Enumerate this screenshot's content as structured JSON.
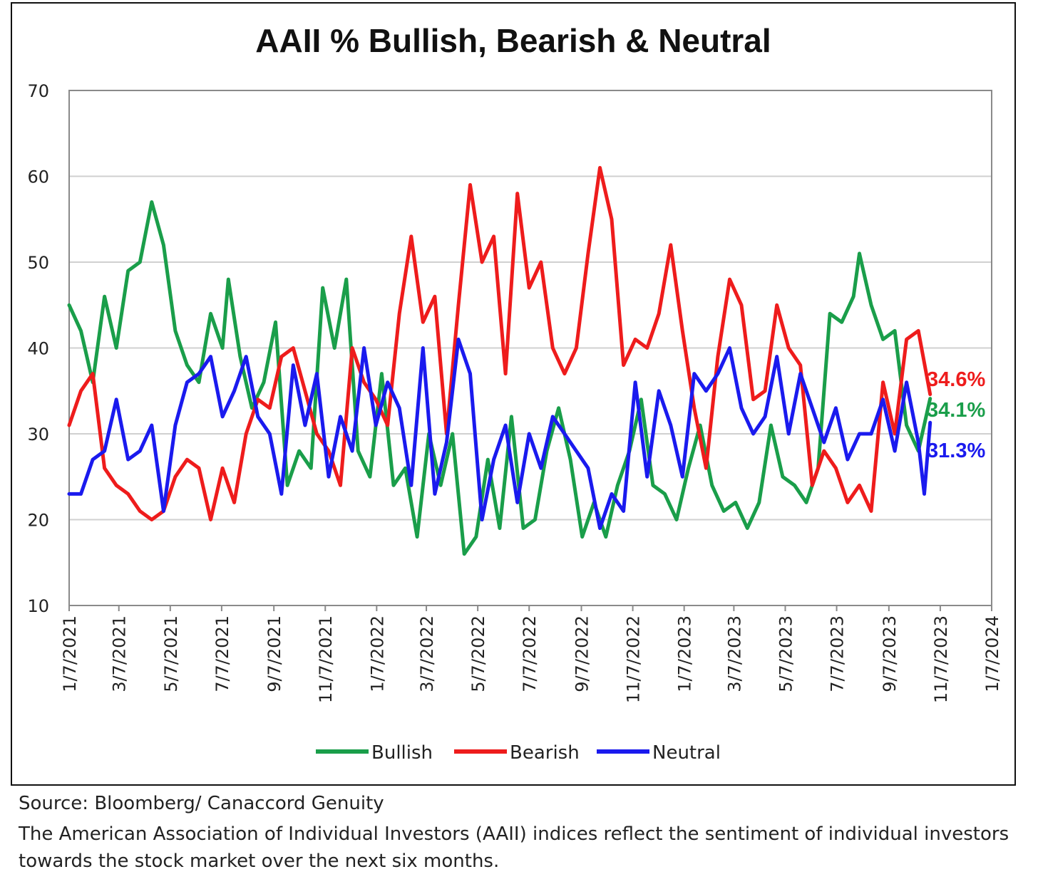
{
  "chart_data": {
    "type": "line",
    "title": "AAII % Bullish, Bearish & Neutral",
    "xlabel": "",
    "ylabel": "",
    "ylim": [
      10,
      70
    ],
    "yticks": [
      10,
      20,
      30,
      40,
      50,
      60,
      70
    ],
    "xlim": [
      "2021-01-07",
      "2024-01-07"
    ],
    "xticks": [
      "2021-01-07",
      "2021-03-07",
      "2021-05-07",
      "2021-07-07",
      "2021-09-07",
      "2021-11-07",
      "2022-01-07",
      "2022-03-07",
      "2022-05-07",
      "2022-07-07",
      "2022-09-07",
      "2022-11-07",
      "2023-01-07",
      "2023-03-07",
      "2023-05-07",
      "2023-07-07",
      "2023-09-07",
      "2023-11-07",
      "2024-01-07"
    ],
    "xtick_labels": [
      "1/7/2021",
      "3/7/2021",
      "5/7/2021",
      "7/7/2021",
      "9/7/2021",
      "11/7/2021",
      "1/7/2022",
      "3/7/2022",
      "5/7/2022",
      "7/7/2022",
      "9/7/2022",
      "11/7/2022",
      "1/7/2023",
      "3/7/2023",
      "5/7/2023",
      "7/7/2023",
      "9/7/2023",
      "11/7/2023",
      "1/7/2024"
    ],
    "grid": "horizontal",
    "legend_position": "bottom",
    "series": [
      {
        "name": "Bullish",
        "color": "#1a9e4a",
        "end_label": "34.1%",
        "points": [
          [
            "2021-01-07",
            45
          ],
          [
            "2021-01-21",
            42
          ],
          [
            "2021-02-04",
            36
          ],
          [
            "2021-02-18",
            46
          ],
          [
            "2021-03-04",
            40
          ],
          [
            "2021-03-18",
            49
          ],
          [
            "2021-04-01",
            50
          ],
          [
            "2021-04-15",
            57
          ],
          [
            "2021-04-29",
            52
          ],
          [
            "2021-05-13",
            42
          ],
          [
            "2021-05-27",
            38
          ],
          [
            "2021-06-10",
            36
          ],
          [
            "2021-06-24",
            44
          ],
          [
            "2021-07-08",
            40
          ],
          [
            "2021-07-15",
            48
          ],
          [
            "2021-07-29",
            39
          ],
          [
            "2021-08-12",
            33
          ],
          [
            "2021-08-26",
            36
          ],
          [
            "2021-09-09",
            43
          ],
          [
            "2021-09-23",
            24
          ],
          [
            "2021-10-07",
            28
          ],
          [
            "2021-10-21",
            26
          ],
          [
            "2021-11-04",
            47
          ],
          [
            "2021-11-18",
            40
          ],
          [
            "2021-12-02",
            48
          ],
          [
            "2021-12-16",
            28
          ],
          [
            "2021-12-30",
            25
          ],
          [
            "2022-01-13",
            37
          ],
          [
            "2022-01-27",
            24
          ],
          [
            "2022-02-10",
            26
          ],
          [
            "2022-02-24",
            18
          ],
          [
            "2022-03-10",
            30
          ],
          [
            "2022-03-24",
            24
          ],
          [
            "2022-04-07",
            30
          ],
          [
            "2022-04-21",
            16
          ],
          [
            "2022-05-05",
            18
          ],
          [
            "2022-05-19",
            27
          ],
          [
            "2022-06-02",
            19
          ],
          [
            "2022-06-16",
            32
          ],
          [
            "2022-06-30",
            19
          ],
          [
            "2022-07-14",
            20
          ],
          [
            "2022-07-28",
            28
          ],
          [
            "2022-08-11",
            33
          ],
          [
            "2022-08-25",
            27
          ],
          [
            "2022-09-08",
            18
          ],
          [
            "2022-09-22",
            22
          ],
          [
            "2022-10-06",
            18
          ],
          [
            "2022-10-20",
            24
          ],
          [
            "2022-11-03",
            28
          ],
          [
            "2022-11-17",
            34
          ],
          [
            "2022-12-01",
            24
          ],
          [
            "2022-12-15",
            23
          ],
          [
            "2022-12-29",
            20
          ],
          [
            "2023-01-12",
            26
          ],
          [
            "2023-01-26",
            31
          ],
          [
            "2023-02-09",
            24
          ],
          [
            "2023-02-23",
            21
          ],
          [
            "2023-03-09",
            22
          ],
          [
            "2023-03-23",
            19
          ],
          [
            "2023-04-06",
            22
          ],
          [
            "2023-04-20",
            31
          ],
          [
            "2023-05-04",
            25
          ],
          [
            "2023-05-18",
            24
          ],
          [
            "2023-06-01",
            22
          ],
          [
            "2023-06-15",
            26
          ],
          [
            "2023-06-29",
            44
          ],
          [
            "2023-07-13",
            43
          ],
          [
            "2023-07-27",
            46
          ],
          [
            "2023-08-03",
            51
          ],
          [
            "2023-08-17",
            45
          ],
          [
            "2023-08-31",
            41
          ],
          [
            "2023-09-14",
            42
          ],
          [
            "2023-09-28",
            31
          ],
          [
            "2023-10-12",
            28
          ],
          [
            "2023-10-26",
            34.1
          ]
        ]
      },
      {
        "name": "Bearish",
        "color": "#ee1c1c",
        "end_label": "34.6%",
        "points": [
          [
            "2021-01-07",
            31
          ],
          [
            "2021-01-21",
            35
          ],
          [
            "2021-02-04",
            37
          ],
          [
            "2021-02-18",
            26
          ],
          [
            "2021-03-04",
            24
          ],
          [
            "2021-03-18",
            23
          ],
          [
            "2021-04-01",
            21
          ],
          [
            "2021-04-15",
            20
          ],
          [
            "2021-04-29",
            21
          ],
          [
            "2021-05-13",
            25
          ],
          [
            "2021-05-27",
            27
          ],
          [
            "2021-06-10",
            26
          ],
          [
            "2021-06-24",
            20
          ],
          [
            "2021-07-08",
            26
          ],
          [
            "2021-07-22",
            22
          ],
          [
            "2021-08-05",
            30
          ],
          [
            "2021-08-19",
            34
          ],
          [
            "2021-09-02",
            33
          ],
          [
            "2021-09-16",
            39
          ],
          [
            "2021-09-30",
            40
          ],
          [
            "2021-10-14",
            35
          ],
          [
            "2021-10-28",
            30
          ],
          [
            "2021-11-11",
            28
          ],
          [
            "2021-11-25",
            24
          ],
          [
            "2021-12-09",
            40
          ],
          [
            "2021-12-23",
            36
          ],
          [
            "2022-01-06",
            34
          ],
          [
            "2022-01-20",
            31
          ],
          [
            "2022-02-03",
            44
          ],
          [
            "2022-02-17",
            53
          ],
          [
            "2022-03-03",
            43
          ],
          [
            "2022-03-17",
            46
          ],
          [
            "2022-03-31",
            30
          ],
          [
            "2022-04-14",
            45
          ],
          [
            "2022-04-28",
            59
          ],
          [
            "2022-05-12",
            50
          ],
          [
            "2022-05-26",
            53
          ],
          [
            "2022-06-09",
            37
          ],
          [
            "2022-06-23",
            58
          ],
          [
            "2022-07-07",
            47
          ],
          [
            "2022-07-21",
            50
          ],
          [
            "2022-08-04",
            40
          ],
          [
            "2022-08-18",
            37
          ],
          [
            "2022-09-01",
            40
          ],
          [
            "2022-09-15",
            51
          ],
          [
            "2022-09-29",
            61
          ],
          [
            "2022-10-13",
            55
          ],
          [
            "2022-10-27",
            38
          ],
          [
            "2022-11-10",
            41
          ],
          [
            "2022-11-24",
            40
          ],
          [
            "2022-12-08",
            44
          ],
          [
            "2022-12-22",
            52
          ],
          [
            "2023-01-05",
            42
          ],
          [
            "2023-01-19",
            33
          ],
          [
            "2023-02-02",
            26
          ],
          [
            "2023-02-16",
            39
          ],
          [
            "2023-03-02",
            48
          ],
          [
            "2023-03-16",
            45
          ],
          [
            "2023-03-30",
            34
          ],
          [
            "2023-04-13",
            35
          ],
          [
            "2023-04-27",
            45
          ],
          [
            "2023-05-11",
            40
          ],
          [
            "2023-05-25",
            38
          ],
          [
            "2023-06-08",
            24
          ],
          [
            "2023-06-22",
            28
          ],
          [
            "2023-07-06",
            26
          ],
          [
            "2023-07-20",
            22
          ],
          [
            "2023-08-03",
            24
          ],
          [
            "2023-08-17",
            21
          ],
          [
            "2023-08-31",
            36
          ],
          [
            "2023-09-14",
            30
          ],
          [
            "2023-09-28",
            41
          ],
          [
            "2023-10-12",
            42
          ],
          [
            "2023-10-26",
            34.6
          ]
        ]
      },
      {
        "name": "Neutral",
        "color": "#1a1aee",
        "end_label": "31.3%",
        "points": [
          [
            "2021-01-07",
            23
          ],
          [
            "2021-01-21",
            23
          ],
          [
            "2021-02-04",
            27
          ],
          [
            "2021-02-18",
            28
          ],
          [
            "2021-03-04",
            34
          ],
          [
            "2021-03-18",
            27
          ],
          [
            "2021-04-01",
            28
          ],
          [
            "2021-04-15",
            31
          ],
          [
            "2021-04-29",
            21
          ],
          [
            "2021-05-13",
            31
          ],
          [
            "2021-05-27",
            36
          ],
          [
            "2021-06-10",
            37
          ],
          [
            "2021-06-24",
            39
          ],
          [
            "2021-07-08",
            32
          ],
          [
            "2021-07-22",
            35
          ],
          [
            "2021-08-05",
            39
          ],
          [
            "2021-08-19",
            32
          ],
          [
            "2021-09-02",
            30
          ],
          [
            "2021-09-16",
            23
          ],
          [
            "2021-09-30",
            38
          ],
          [
            "2021-10-14",
            31
          ],
          [
            "2021-10-28",
            37
          ],
          [
            "2021-11-11",
            25
          ],
          [
            "2021-11-25",
            32
          ],
          [
            "2021-12-09",
            28
          ],
          [
            "2021-12-23",
            40
          ],
          [
            "2022-01-06",
            31
          ],
          [
            "2022-01-20",
            36
          ],
          [
            "2022-02-03",
            33
          ],
          [
            "2022-02-17",
            24
          ],
          [
            "2022-03-03",
            40
          ],
          [
            "2022-03-17",
            23
          ],
          [
            "2022-03-31",
            29
          ],
          [
            "2022-04-14",
            41
          ],
          [
            "2022-04-28",
            37
          ],
          [
            "2022-05-12",
            20
          ],
          [
            "2022-05-26",
            27
          ],
          [
            "2022-06-09",
            31
          ],
          [
            "2022-06-23",
            22
          ],
          [
            "2022-07-07",
            30
          ],
          [
            "2022-07-21",
            26
          ],
          [
            "2022-08-04",
            32
          ],
          [
            "2022-08-18",
            30
          ],
          [
            "2022-09-01",
            28
          ],
          [
            "2022-09-15",
            26
          ],
          [
            "2022-09-29",
            19
          ],
          [
            "2022-10-13",
            23
          ],
          [
            "2022-10-27",
            21
          ],
          [
            "2022-11-10",
            36
          ],
          [
            "2022-11-24",
            25
          ],
          [
            "2022-12-08",
            35
          ],
          [
            "2022-12-22",
            31
          ],
          [
            "2023-01-05",
            25
          ],
          [
            "2023-01-19",
            37
          ],
          [
            "2023-02-02",
            35
          ],
          [
            "2023-02-16",
            37
          ],
          [
            "2023-03-02",
            40
          ],
          [
            "2023-03-16",
            33
          ],
          [
            "2023-03-30",
            30
          ],
          [
            "2023-04-13",
            32
          ],
          [
            "2023-04-27",
            39
          ],
          [
            "2023-05-11",
            30
          ],
          [
            "2023-05-25",
            37
          ],
          [
            "2023-06-08",
            33
          ],
          [
            "2023-06-22",
            29
          ],
          [
            "2023-07-06",
            33
          ],
          [
            "2023-07-20",
            27
          ],
          [
            "2023-08-03",
            30
          ],
          [
            "2023-08-17",
            30
          ],
          [
            "2023-08-31",
            34
          ],
          [
            "2023-09-14",
            28
          ],
          [
            "2023-09-28",
            36
          ],
          [
            "2023-10-12",
            29
          ],
          [
            "2023-10-19",
            23
          ],
          [
            "2023-10-26",
            31.3
          ]
        ]
      }
    ]
  },
  "notes": {
    "source": "Source: Bloomberg/ Canaccord Genuity",
    "description": "The American Association of Individual Investors (AAII) indices reflect the sentiment of individual investors towards the stock market over the next six months."
  }
}
